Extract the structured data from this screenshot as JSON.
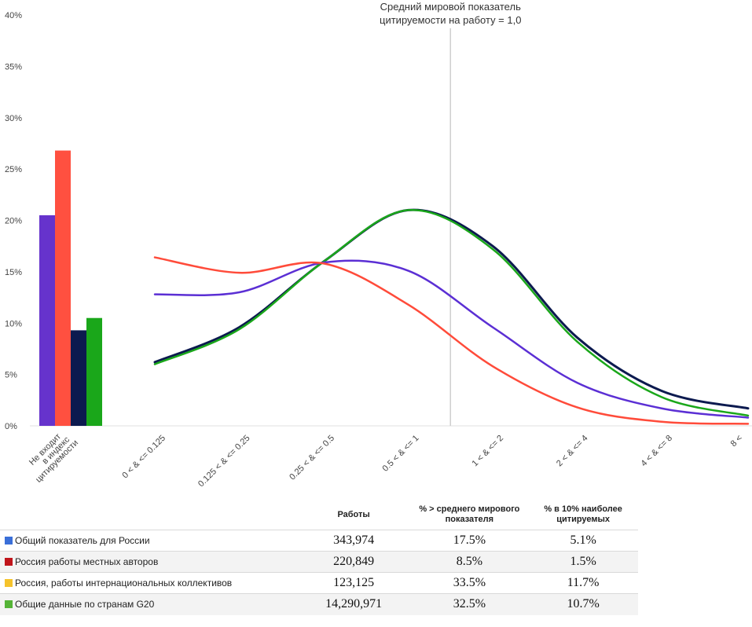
{
  "chart_data": {
    "type": "bar+line",
    "y_ticks": [
      "0%",
      "5%",
      "10%",
      "15%",
      "20%",
      "25%",
      "30%",
      "35%",
      "40%"
    ],
    "ylim": [
      0,
      40
    ],
    "reference_line": {
      "line1": "Средний мировой показатель",
      "line2": "цитируемости на работу = 1,0",
      "x_value": 1.0
    },
    "bar_group": {
      "label_lines": [
        "Не входит",
        "в индекс",
        "цитируемости"
      ],
      "bars": [
        {
          "series": "Общий показатель для России",
          "value": 20.5,
          "color": "#6633cc"
        },
        {
          "series": "Россия работы местных авторов",
          "value": 26.8,
          "color": "#ff5040"
        },
        {
          "series": "Россия, работы интернациональных коллективов",
          "value": 9.3,
          "color": "#0c1a4f"
        },
        {
          "series": "Общие данные по странам G20",
          "value": 10.5,
          "color": "#1aa71a"
        }
      ]
    },
    "categories": [
      "0 < & <= 0.125",
      "0.125 < & <= 0.25",
      "0.25 < & <= 0.5",
      "0.5 < & <= 1",
      "1 < & <= 2",
      "2 < & <= 4",
      "4 < & <= 8",
      "8 <"
    ],
    "series": [
      {
        "name": "Россия, работы интернациональных коллективов",
        "color": "#0c1a4f",
        "width": 3,
        "values": [
          6.2,
          9.6,
          16.0,
          21.0,
          17.5,
          8.6,
          3.4,
          1.7
        ]
      },
      {
        "name": "Общие данные по странам G20",
        "color": "#1aa71a",
        "width": 2.5,
        "values": [
          6.0,
          9.4,
          16.0,
          21.0,
          17.2,
          8.2,
          2.8,
          1.0
        ]
      },
      {
        "name": "Общий показатель для России",
        "color": "#5b2fd4",
        "width": 2.5,
        "values": [
          12.8,
          13.0,
          15.9,
          15.1,
          9.6,
          4.2,
          1.7,
          0.8
        ]
      },
      {
        "name": "Россия работы местных авторов",
        "color": "#ff4b3a",
        "width": 2.5,
        "values": [
          16.4,
          14.9,
          15.8,
          11.8,
          5.8,
          1.8,
          0.4,
          0.2
        ]
      }
    ]
  },
  "table": {
    "headers": {
      "works": "Работы",
      "above_world_line1": "% > среднего мирового",
      "above_world_line2": "показателя",
      "top10_line1": "% в 10% наиболее",
      "top10_line2": "цитируемых"
    },
    "rows": [
      {
        "label": "Общий показатель для России",
        "color": "#3a6fd8",
        "works": "343,974",
        "above": "17.5%",
        "top10": "5.1%"
      },
      {
        "label": "Россия работы местных авторов",
        "color": "#c0151b",
        "works": "220,849",
        "above": "8.5%",
        "top10": "1.5%"
      },
      {
        "label": "Россия, работы интернациональных коллективов",
        "color": "#f5c32c",
        "works": "123,125",
        "above": "33.5%",
        "top10": "11.7%"
      },
      {
        "label": "Общие данные по странам G20",
        "color": "#55b337",
        "works": "14,290,971",
        "above": "32.5%",
        "top10": "10.7%"
      }
    ]
  }
}
